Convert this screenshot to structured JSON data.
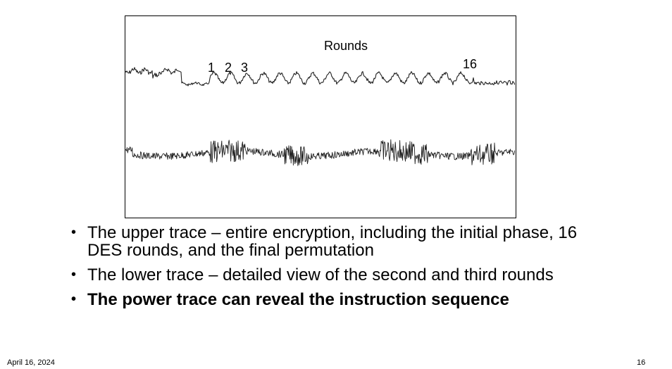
{
  "figure": {
    "title": "Rounds",
    "round_labels": [
      "1",
      "2",
      "3",
      "16"
    ]
  },
  "bullets": [
    {
      "text": "The upper trace – entire encryption, including the initial phase, 16 DES rounds, and the final permutation",
      "bold": false
    },
    {
      "text": "The lower trace – detailed view of the second and third rounds",
      "bold": false
    },
    {
      "text": "The power trace can reveal the instruction sequence",
      "bold": true
    }
  ],
  "footer": {
    "date": "April 16, 2024",
    "page_number": "16"
  }
}
